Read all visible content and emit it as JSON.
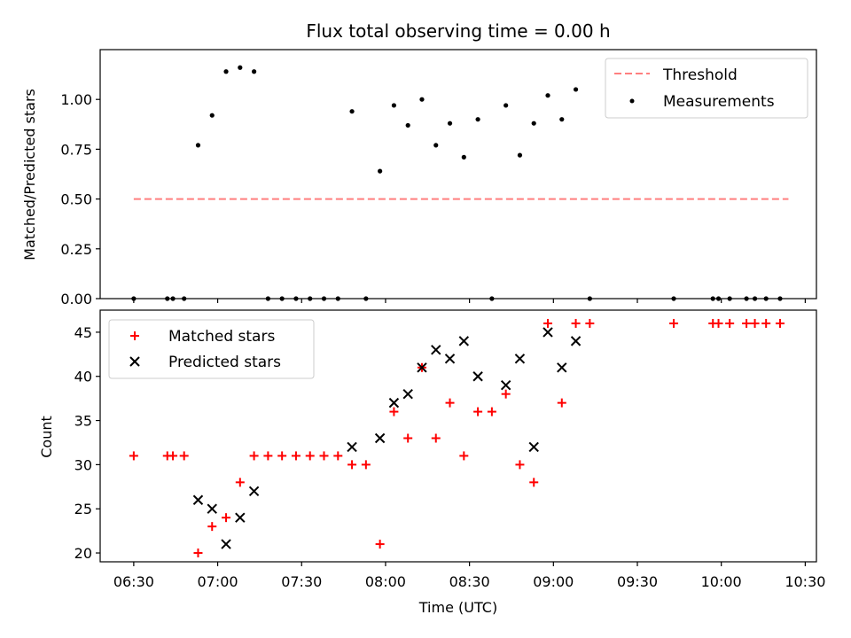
{
  "chart_data": [
    {
      "type": "scatter",
      "title": "Flux total observing time = 0.00 h",
      "xlabel": "",
      "ylabel": "Matched/Predicted stars",
      "xlim": [
        "06:18",
        "10:34"
      ],
      "ylim": [
        0,
        1.25
      ],
      "yticks": [
        "0.00",
        "0.25",
        "0.50",
        "0.75",
        "1.00"
      ],
      "legend_position": "top-right",
      "threshold": {
        "name": "Threshold",
        "value": 0.5,
        "x": [
          "06:30",
          "10:24"
        ],
        "color": "#ff7f7f"
      },
      "series": [
        {
          "name": "Measurements",
          "color": "#000000",
          "points": [
            [
              "06:30",
              0
            ],
            [
              "06:42",
              0
            ],
            [
              "06:44",
              0
            ],
            [
              "06:48",
              0
            ],
            [
              "06:53",
              0.77
            ],
            [
              "06:58",
              0.92
            ],
            [
              "07:03",
              1.14
            ],
            [
              "07:08",
              1.16
            ],
            [
              "07:13",
              1.14
            ],
            [
              "07:18",
              0
            ],
            [
              "07:23",
              0
            ],
            [
              "07:28",
              0
            ],
            [
              "07:33",
              0
            ],
            [
              "07:38",
              0
            ],
            [
              "07:43",
              0
            ],
            [
              "07:48",
              0.94
            ],
            [
              "07:53",
              0
            ],
            [
              "07:58",
              0.64
            ],
            [
              "08:03",
              0.97
            ],
            [
              "08:08",
              0.87
            ],
            [
              "08:13",
              1.0
            ],
            [
              "08:18",
              0.77
            ],
            [
              "08:23",
              0.88
            ],
            [
              "08:28",
              0.71
            ],
            [
              "08:33",
              0.9
            ],
            [
              "08:38",
              0
            ],
            [
              "08:43",
              0.97
            ],
            [
              "08:48",
              0.72
            ],
            [
              "08:53",
              0.88
            ],
            [
              "08:58",
              1.02
            ],
            [
              "09:03",
              0.9
            ],
            [
              "09:08",
              1.05
            ],
            [
              "09:13",
              0
            ],
            [
              "09:43",
              0
            ],
            [
              "09:57",
              0
            ],
            [
              "09:59",
              0
            ],
            [
              "10:03",
              0
            ],
            [
              "10:09",
              0
            ],
            [
              "10:12",
              0
            ],
            [
              "10:16",
              0
            ],
            [
              "10:21",
              0
            ]
          ]
        }
      ]
    },
    {
      "type": "scatter",
      "title": "",
      "xlabel": "Time (UTC)",
      "ylabel": "Count",
      "xlim": [
        "06:18",
        "10:34"
      ],
      "ylim": [
        19,
        47.5
      ],
      "yticks": [
        "20",
        "25",
        "30",
        "35",
        "40",
        "45"
      ],
      "xticks": [
        "06:30",
        "07:00",
        "07:30",
        "08:00",
        "08:30",
        "09:00",
        "09:30",
        "10:00",
        "10:30"
      ],
      "legend_position": "top-left",
      "series": [
        {
          "name": "Matched stars",
          "marker": "+",
          "color": "#ff0000",
          "points": [
            [
              "06:30",
              31
            ],
            [
              "06:42",
              31
            ],
            [
              "06:44",
              31
            ],
            [
              "06:48",
              31
            ],
            [
              "06:53",
              20
            ],
            [
              "06:58",
              23
            ],
            [
              "07:03",
              24
            ],
            [
              "07:08",
              28
            ],
            [
              "07:13",
              31
            ],
            [
              "07:18",
              31
            ],
            [
              "07:23",
              31
            ],
            [
              "07:28",
              31
            ],
            [
              "07:33",
              31
            ],
            [
              "07:38",
              31
            ],
            [
              "07:43",
              31
            ],
            [
              "07:48",
              30
            ],
            [
              "07:53",
              30
            ],
            [
              "07:58",
              21
            ],
            [
              "08:03",
              36
            ],
            [
              "08:08",
              33
            ],
            [
              "08:13",
              41
            ],
            [
              "08:18",
              33
            ],
            [
              "08:23",
              37
            ],
            [
              "08:28",
              31
            ],
            [
              "08:33",
              36
            ],
            [
              "08:38",
              36
            ],
            [
              "08:43",
              38
            ],
            [
              "08:48",
              30
            ],
            [
              "08:53",
              28
            ],
            [
              "08:58",
              46
            ],
            [
              "09:03",
              37
            ],
            [
              "09:08",
              46
            ],
            [
              "09:13",
              46
            ],
            [
              "09:43",
              46
            ],
            [
              "09:57",
              46
            ],
            [
              "09:59",
              46
            ],
            [
              "10:03",
              46
            ],
            [
              "10:09",
              46
            ],
            [
              "10:12",
              46
            ],
            [
              "10:16",
              46
            ],
            [
              "10:21",
              46
            ]
          ]
        },
        {
          "name": "Predicted stars",
          "marker": "x",
          "color": "#000000",
          "points": [
            [
              "06:53",
              26
            ],
            [
              "06:58",
              25
            ],
            [
              "07:03",
              21
            ],
            [
              "07:08",
              24
            ],
            [
              "07:13",
              27
            ],
            [
              "07:48",
              32
            ],
            [
              "07:58",
              33
            ],
            [
              "08:03",
              37
            ],
            [
              "08:08",
              38
            ],
            [
              "08:13",
              41
            ],
            [
              "08:18",
              43
            ],
            [
              "08:23",
              42
            ],
            [
              "08:28",
              44
            ],
            [
              "08:33",
              40
            ],
            [
              "08:43",
              39
            ],
            [
              "08:48",
              42
            ],
            [
              "08:53",
              32
            ],
            [
              "08:58",
              45
            ],
            [
              "09:03",
              41
            ],
            [
              "09:08",
              44
            ]
          ]
        }
      ]
    }
  ]
}
